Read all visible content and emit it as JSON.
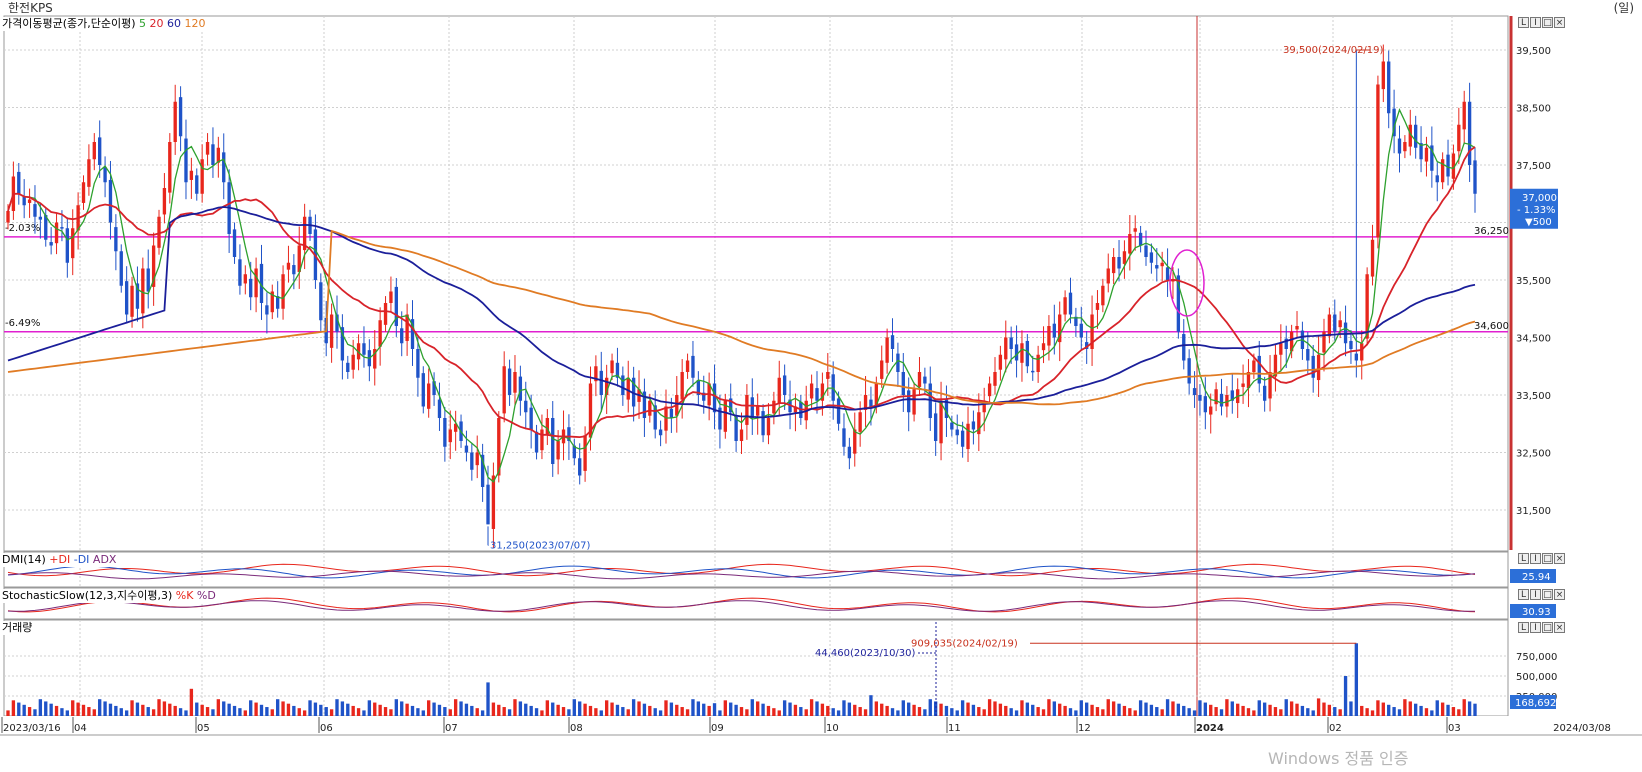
{
  "header": {
    "title": "한전KPS",
    "unit": "(일)"
  },
  "panes": {
    "price": {
      "label": "가격이동평균(종가,단순이평)",
      "ma_periods": [
        "5",
        "20",
        "60",
        "120"
      ]
    },
    "dmi": {
      "label": "DMI(14)",
      "plus": "+DI",
      "minus": "-DI",
      "adx": "ADX",
      "value": "25.94"
    },
    "stoch": {
      "label": "StochasticSlow(12,3,지수이평,3)",
      "k": "%K",
      "d": "%D",
      "value": "30.93"
    },
    "volume": {
      "label": "거래량",
      "value": "168,692"
    }
  },
  "price_tag": {
    "price": "37,000",
    "change_pct": "- 1.33%",
    "change": "▼500"
  },
  "annotations": {
    "high": "39,500(2024/02/19)",
    "low": "31,250(2023/07/07)",
    "line_upper_value": "36,250",
    "line_lower_value": "34,600",
    "line_upper_pct": "-2.03%",
    "line_lower_pct": "-6.49%",
    "vol_peak": "909,035(2024/02/19)",
    "vol_marker": "44,460(2023/10/30)"
  },
  "watermark": "Windows 정품 인증",
  "buttons": [
    "L",
    "I",
    "□",
    "×"
  ],
  "colors": {
    "up": "#e8261c",
    "down": "#1f53c8",
    "ma5": "#2ea12e",
    "ma20": "#d8232a",
    "ma60": "#1b1f9a",
    "ma120": "#e07b24",
    "hline": "#e020d0",
    "vline": "#c83232"
  },
  "chart_data": {
    "type": "candlestick",
    "title": "한전KPS",
    "date_range": [
      "2023/03/16",
      "2024/03/08"
    ],
    "x_ticks": [
      "2023/03/16",
      "04",
      "05",
      "06",
      "07",
      "08",
      "09",
      "10",
      "11",
      "12",
      "2024",
      "02",
      "03",
      "2024/03/08"
    ],
    "y_ticks": [
      31500,
      32500,
      33500,
      34500,
      35500,
      36500,
      37500,
      38500,
      39500
    ],
    "ylim": [
      30850,
      40150
    ],
    "volume_ticks": [
      "250,000",
      "500,000",
      "750,000"
    ],
    "volume_ylim": [
      0,
      1000000
    ],
    "horizontal_lines": [
      36250,
      34600
    ],
    "high": {
      "value": 39500,
      "date": "2024/02/19"
    },
    "low": {
      "value": 31250,
      "date": "2023/07/07"
    },
    "close": [
      36700,
      37300,
      37000,
      36800,
      36900,
      36600,
      36550,
      36200,
      36100,
      36500,
      36400,
      35800,
      36400,
      36800,
      37200,
      37600,
      37900,
      37500,
      37200,
      36500,
      36000,
      35400,
      34900,
      35400,
      35000,
      35700,
      35300,
      36100,
      36600,
      37100,
      37900,
      38600,
      38000,
      37200,
      37400,
      37000,
      37600,
      37900,
      37500,
      37800,
      37200,
      36300,
      35900,
      35400,
      35600,
      35200,
      35700,
      35100,
      34900,
      35300,
      35000,
      35600,
      35800,
      35600,
      36100,
      36600,
      36300,
      35500,
      34800,
      34400,
      34900,
      34600,
      34100,
      33900,
      34200,
      34400,
      34200,
      34000,
      34300,
      34800,
      35100,
      35300,
      34700,
      34400,
      34900,
      34300,
      33800,
      33300,
      33700,
      33500,
      33100,
      32600,
      32900,
      33000,
      32700,
      32500,
      32200,
      32500,
      31900,
      31250,
      32100,
      33100,
      34000,
      33500,
      33900,
      33400,
      33200,
      32900,
      32500,
      32900,
      33100,
      32300,
      32700,
      32900,
      32700,
      32400,
      32100,
      32800,
      33700,
      34000,
      33500,
      33800,
      34100,
      33800,
      33500,
      33800,
      33300,
      33600,
      33100,
      33400,
      32900,
      32800,
      33300,
      33100,
      33500,
      33900,
      34100,
      33800,
      33500,
      33400,
      33700,
      33200,
      32900,
      33400,
      33200,
      32700,
      32900,
      33500,
      33100,
      33300,
      32800,
      33100,
      33400,
      33800,
      33500,
      33200,
      33300,
      33100,
      33400,
      33700,
      33400,
      33700,
      33900,
      33400,
      33000,
      32600,
      32400,
      32900,
      33200,
      33500,
      33300,
      33700,
      34100,
      34500,
      34300,
      33900,
      33500,
      33200,
      33600,
      33900,
      33700,
      33100,
      32700,
      33400,
      33100,
      32900,
      32800,
      32600,
      33000,
      32900,
      33200,
      33400,
      33700,
      33900,
      34200,
      34500,
      34300,
      34100,
      34400,
      34000,
      33900,
      34200,
      34400,
      34700,
      34500,
      34900,
      35200,
      34900,
      34700,
      34500,
      34300,
      34900,
      35100,
      35400,
      35700,
      35900,
      35700,
      36000,
      36300,
      36400,
      36100,
      35900,
      35800,
      35700,
      35800,
      35500,
      35500,
      34600,
      34100,
      33700,
      33500,
      33400,
      33200,
      33300,
      33600,
      33300,
      33500,
      33400,
      33600,
      33700,
      33900,
      34100,
      33700,
      33400,
      33900,
      34200,
      34400,
      34300,
      34600,
      34700,
      34300,
      34100,
      33800,
      34200,
      34600,
      34900,
      34600,
      34800,
      34400,
      34300,
      34100,
      34400,
      35600,
      36200,
      38900,
      39300,
      38400,
      38000,
      37700,
      37900,
      38200,
      37800,
      37600,
      37800,
      37400,
      37200,
      37600,
      37300,
      37700,
      38200,
      38600,
      37500,
      37000
    ],
    "ma_periods": [
      5,
      20,
      60,
      120
    ],
    "annotations": [
      "39,500(2024/02/19)",
      "31,250(2023/07/07)",
      "909,035(2024/02/19)",
      "44,460(2023/10/30)"
    ]
  }
}
